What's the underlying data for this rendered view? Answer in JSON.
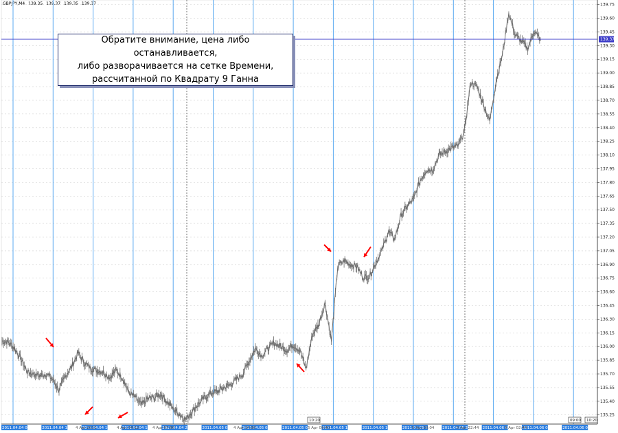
{
  "header": {
    "symbol": "GBPJPY,M4",
    "o": "139.35",
    "h": "139.37",
    "l": "139.35",
    "c": "139.37"
  },
  "annotation": {
    "line1": "Обратите внимание, цена либо останавливается,",
    "line2": "либо разворачивается на сетке Времени,",
    "line3": "рассчитанной по Квадрату 9 Ганна"
  },
  "colors": {
    "background": "#ffffff",
    "price_line": "#7a7a7a",
    "time_grid": "#5aa9f0",
    "current_price_line": "#3d3dc8",
    "arrow": "#ff0000",
    "label_bg": "#2e7fe0"
  },
  "current_price": {
    "value": 139.37,
    "label": "139.37"
  },
  "cursor_labels": [
    "10:20",
    "09:00",
    "10:20"
  ],
  "chart_data": {
    "type": "line",
    "title": "",
    "xlabel": "",
    "ylabel": "",
    "ylim": [
      135.15,
      139.8
    ],
    "y_ticks": [
      "139.75",
      "139.60",
      "139.45",
      "139.30",
      "139.15",
      "139.00",
      "138.85",
      "138.70",
      "138.55",
      "138.40",
      "138.25",
      "138.10",
      "137.95",
      "137.80",
      "137.65",
      "137.50",
      "137.35",
      "137.20",
      "137.05",
      "136.90",
      "136.75",
      "136.60",
      "136.45",
      "136.30",
      "136.15",
      "136.00",
      "135.85",
      "135.70",
      "135.55",
      "135.40",
      "135.25"
    ],
    "grid": true,
    "series": [
      {
        "values": [
          136.06,
          136.05,
          135.98,
          135.86,
          135.72,
          135.7,
          135.68,
          135.7,
          135.64,
          135.52,
          135.68,
          135.78,
          135.93,
          135.82,
          135.76,
          135.74,
          135.72,
          135.66,
          135.74,
          135.66,
          135.5,
          135.44,
          135.36,
          135.43,
          135.44,
          135.48,
          135.4,
          135.32,
          135.26,
          135.2,
          135.29,
          135.37,
          135.44,
          135.49,
          135.51,
          135.55,
          135.58,
          135.64,
          135.7,
          135.84,
          135.98,
          135.9,
          135.98,
          136.04,
          136.0,
          135.96,
          136.02,
          135.96,
          135.76,
          136.13,
          136.24,
          136.48,
          136.06,
          136.88,
          136.94,
          136.9,
          136.88,
          136.76,
          136.77,
          136.92,
          137.06,
          137.26,
          137.18,
          137.44,
          137.54,
          137.62,
          137.82,
          137.94,
          137.94,
          138.1,
          138.14,
          138.18,
          138.2,
          138.36,
          138.9,
          138.85,
          138.66,
          138.47,
          138.91,
          139.2,
          139.66,
          139.42,
          139.35,
          139.27,
          139.46,
          139.37
        ]
      }
    ],
    "time_grid_labels": [
      "2011.04.04 09:12",
      "2011.04.04 12:08",
      "2011.04.04 16:04",
      "2011.04.04 19:28",
      "2011.04.04 22:00",
      "2011.04.05 02:00",
      "2011.04.05 05:44",
      "2011.04.05 09:12",
      "2011.04.05 12:40",
      "2011.04.05 16:08",
      "2011.04.05 19:20",
      "2011.04.05 22:56",
      "2011.04.06 02:44",
      "2011.04.06 05:48",
      "2011.04.06 09:12"
    ],
    "time_axis_text": [
      "4 Apr 2011",
      "4 Apr 04:12",
      "4 Apr 07:56",
      "4 Apr 14:36",
      "5 Apr 09:40",
      "5 Apr 20:04",
      "5 Apr 22:44",
      "6 Apr 02:44"
    ],
    "annotations": [
      "arrow",
      "arrow",
      "arrow",
      "arrow",
      "arrow",
      "arrow"
    ]
  }
}
